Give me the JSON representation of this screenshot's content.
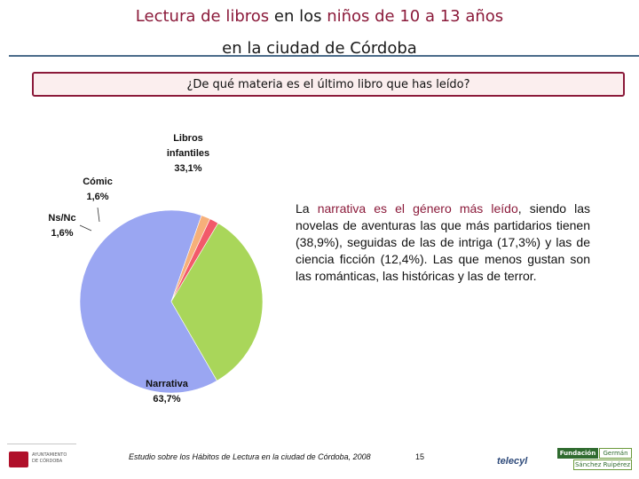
{
  "header": {
    "title_line1_a": "Lectura de libros",
    "title_line1_b": " en los ",
    "title_line1_c": "niños de 10 a 13 años",
    "title_line2": "en la ciudad de Córdoba",
    "question": "¿De qué materia es el último libro que has leído?"
  },
  "chart_data": {
    "type": "pie",
    "slices": [
      {
        "label": "Narrativa",
        "value": 63.7,
        "display": "63,7%",
        "color": "#9aa6f2"
      },
      {
        "label": "Ns/Nc",
        "value": 1.6,
        "display": "1,6%",
        "color": "#f6b07a"
      },
      {
        "label": "Cómic",
        "value": 1.6,
        "display": "1,6%",
        "color": "#f25a6a"
      },
      {
        "label": "Libros infantiles",
        "value": 33.1,
        "display": "33,1%",
        "color": "#a9d65a"
      }
    ],
    "labels": {
      "libros_1": "Libros",
      "libros_2": "infantiles",
      "libros_3": "33,1%",
      "comic_1": "Cómic",
      "comic_2": "1,6%",
      "nsnc_1": "Ns/Nc",
      "nsnc_2": "1,6%",
      "narrativa_1": "Narrativa",
      "narrativa_2": "63,7%"
    }
  },
  "description": {
    "p1": "La ",
    "p2": "narrativa es el género más leído",
    "p3": ", siendo las novelas de aventuras las que más partidarios tienen (38,9%), seguidas de las de intriga (17,3%) y las de ciencia ficción (12,4%). Las que menos gustan son las románticas, las históricas y las de terror."
  },
  "footer": {
    "source": "Estudio sobre los Hábitos de Lectura en la ciudad de Córdoba, 2008",
    "page": "15"
  },
  "logos": {
    "ayto_1": "AYUNTAMIENTO",
    "ayto_2": "DE CÓRDOBA",
    "telecyl": "telecyl",
    "fund_1": "Fundación",
    "fund_2": "Germán",
    "fund_3": "Sánchez Ruipérez"
  }
}
